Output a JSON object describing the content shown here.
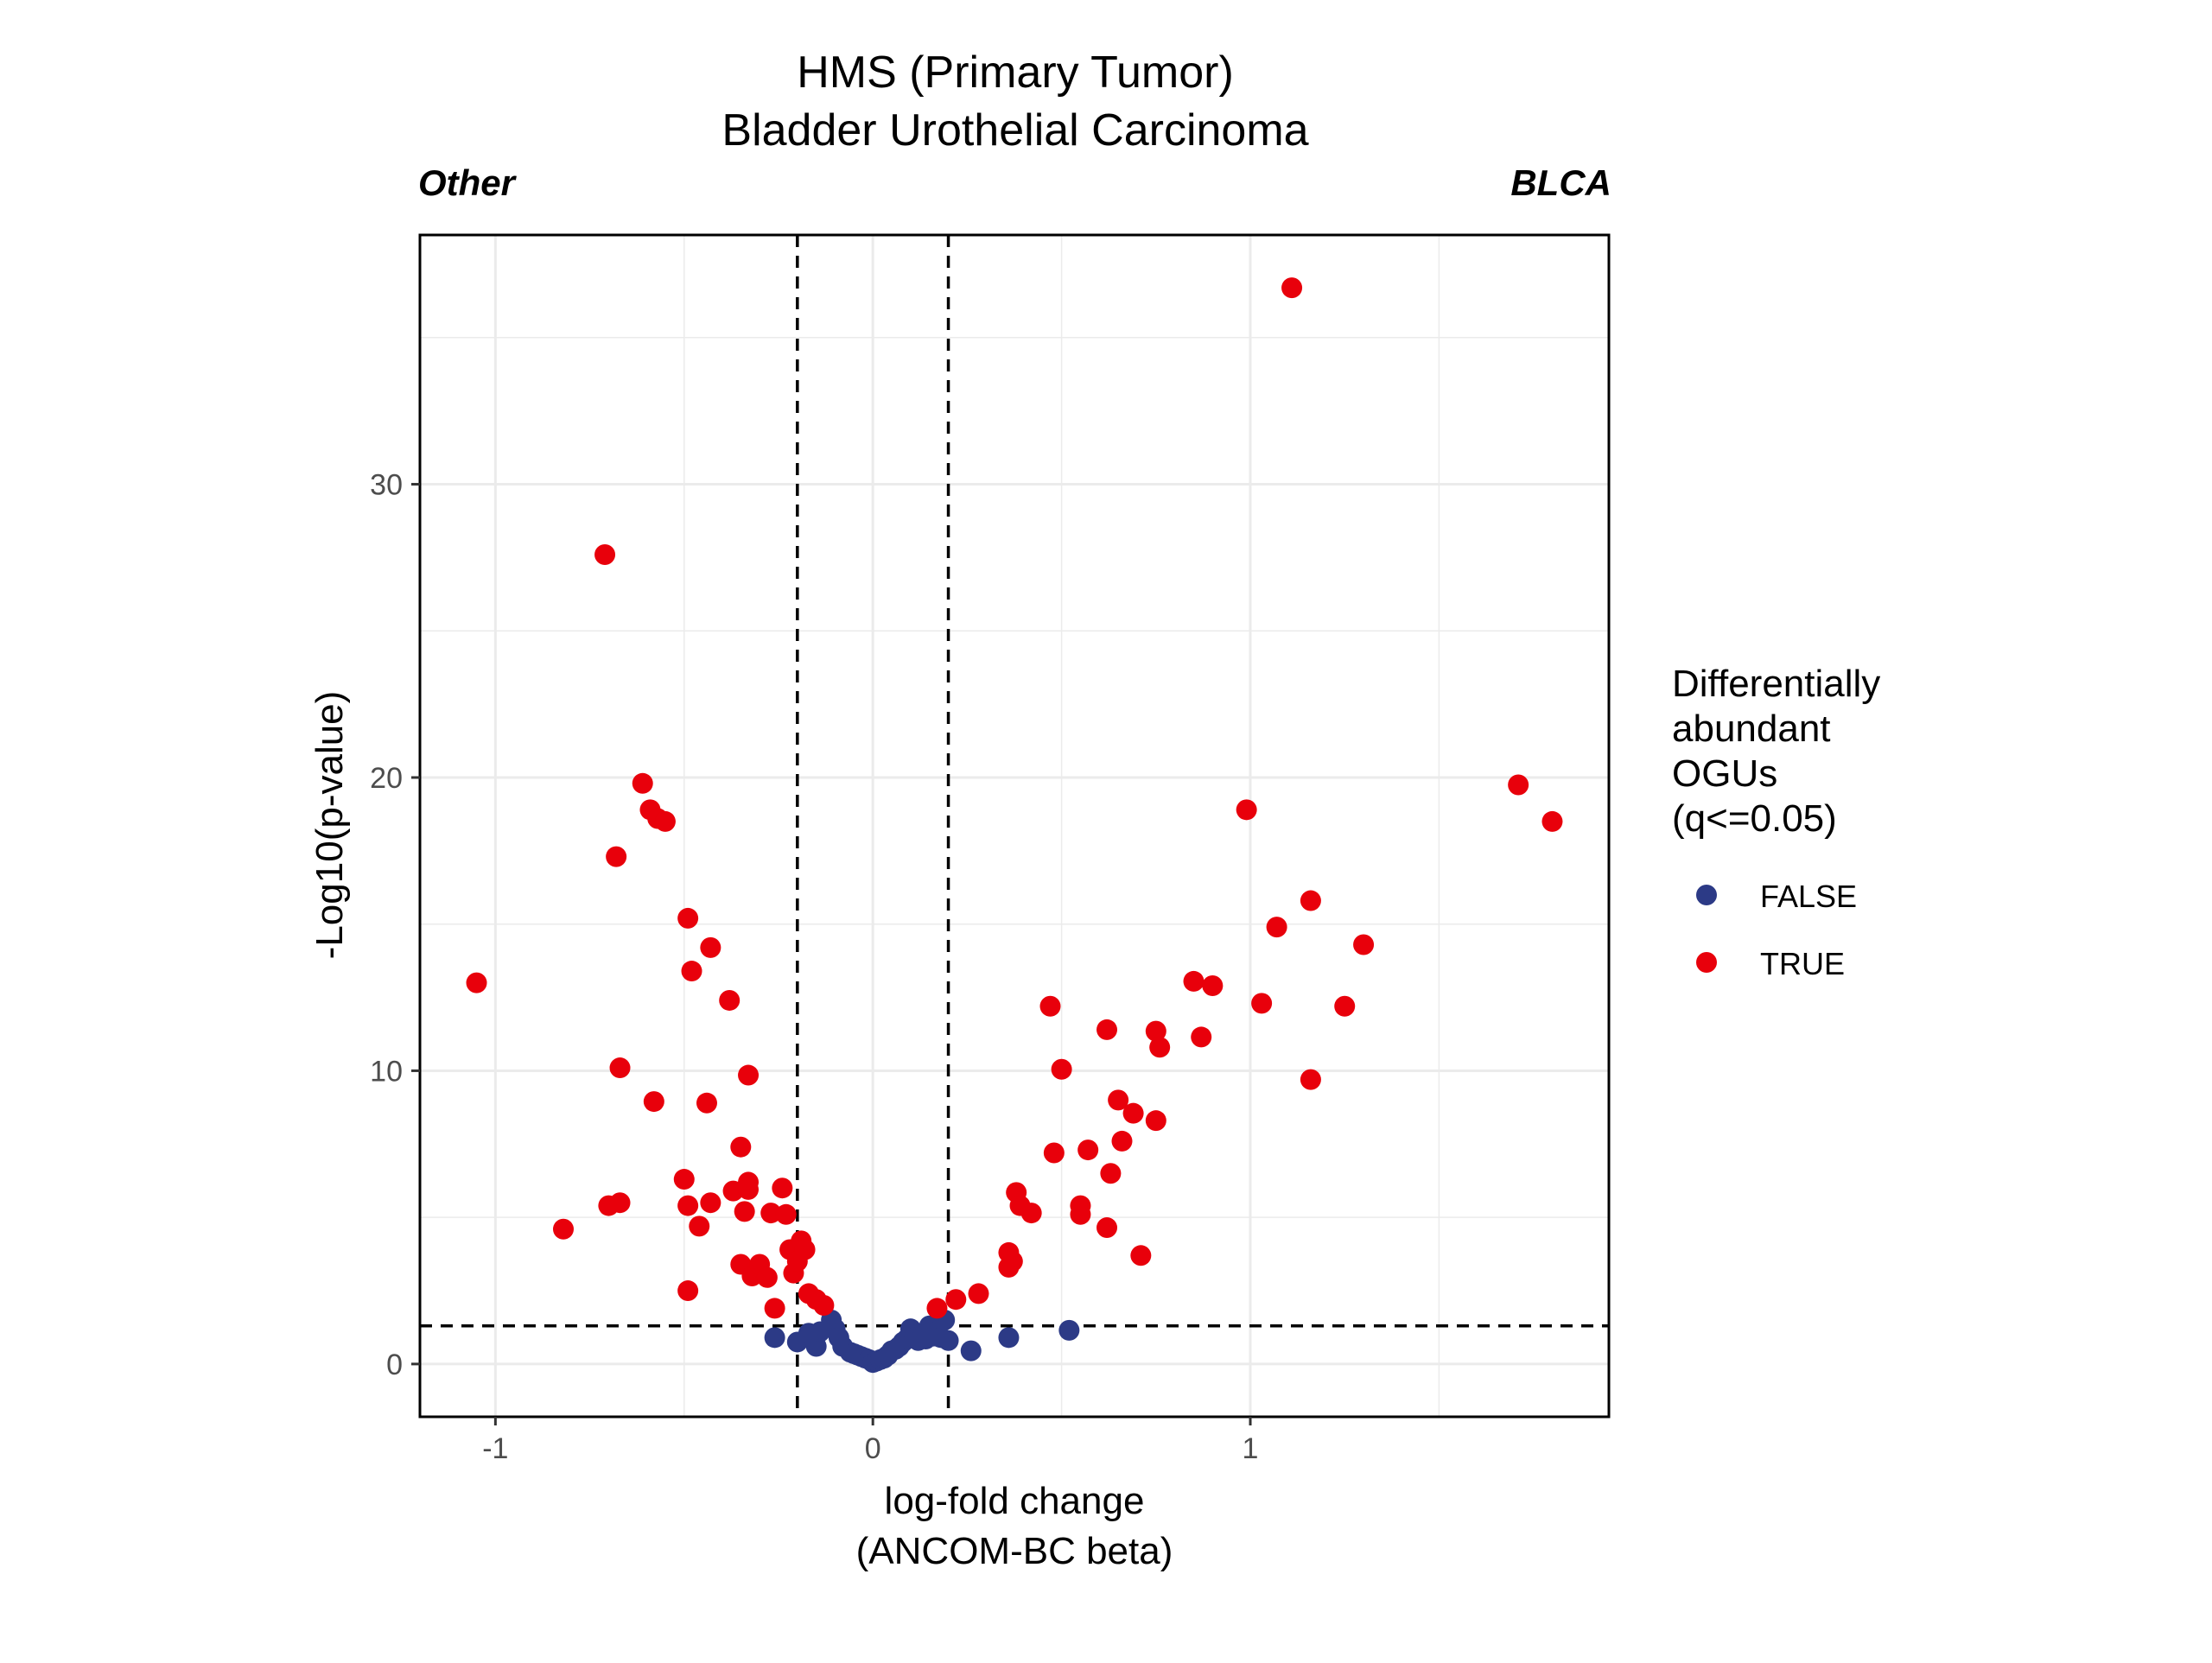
{
  "chart_data": {
    "type": "scatter",
    "title": [
      "HMS (Primary Tumor)",
      "Bladder Urothelial Carcinoma"
    ],
    "left_label": "Other",
    "right_label": "BLCA",
    "xlabel": [
      "log-fold change",
      "(ANCOM-BC beta)"
    ],
    "ylabel": "-Log10(p-value)",
    "xlim": [
      -1.2,
      1.95
    ],
    "ylim": [
      -1.8,
      38.5
    ],
    "x_ticks": [
      -1,
      0,
      1
    ],
    "x_tick_labels": [
      "-1",
      "0",
      "1"
    ],
    "y_ticks": [
      0,
      10,
      20,
      30
    ],
    "y_tick_labels": [
      "0",
      "10",
      "20",
      "30"
    ],
    "grid": true,
    "reference_lines": {
      "vertical": [
        -0.2,
        0.2
      ],
      "horizontal": [
        1.3
      ]
    },
    "legend": {
      "title": [
        "Differentially",
        "abundant",
        "OGUs",
        "(q<=0.05)"
      ],
      "placement": "right",
      "entries": [
        {
          "label": "FALSE",
          "color": "#2c3a86"
        },
        {
          "label": "TRUE",
          "color": "#e8000b"
        }
      ]
    },
    "series": [
      {
        "name": "FALSE",
        "color": "#2c3a86",
        "points": [
          [
            -0.26,
            0.9
          ],
          [
            -0.2,
            0.75
          ],
          [
            -0.17,
            1.05
          ],
          [
            -0.15,
            0.6
          ],
          [
            -0.14,
            1.1
          ],
          [
            -0.11,
            1.5
          ],
          [
            -0.1,
            1.2
          ],
          [
            -0.09,
            0.9
          ],
          [
            -0.08,
            0.6
          ],
          [
            -0.06,
            0.4
          ],
          [
            -0.05,
            0.35
          ],
          [
            -0.04,
            0.3
          ],
          [
            -0.03,
            0.25
          ],
          [
            -0.02,
            0.2
          ],
          [
            -0.01,
            0.15
          ],
          [
            0.0,
            0.05
          ],
          [
            0.01,
            0.1
          ],
          [
            0.02,
            0.15
          ],
          [
            0.03,
            0.2
          ],
          [
            0.04,
            0.3
          ],
          [
            0.05,
            0.45
          ],
          [
            0.06,
            0.5
          ],
          [
            0.07,
            0.6
          ],
          [
            0.08,
            0.75
          ],
          [
            0.09,
            0.85
          ],
          [
            0.1,
            1.2
          ],
          [
            0.11,
            0.9
          ],
          [
            0.12,
            0.8
          ],
          [
            0.13,
            1.0
          ],
          [
            0.14,
            0.85
          ],
          [
            0.15,
            1.3
          ],
          [
            0.16,
            0.95
          ],
          [
            0.17,
            1.1
          ],
          [
            0.18,
            0.9
          ],
          [
            0.19,
            1.5
          ],
          [
            0.2,
            0.8
          ],
          [
            0.26,
            0.45
          ],
          [
            0.36,
            0.9
          ],
          [
            0.52,
            1.15
          ]
        ]
      },
      {
        "name": "TRUE",
        "color": "#e8000b",
        "points": [
          [
            -1.05,
            13.0
          ],
          [
            -0.82,
            4.6
          ],
          [
            -0.71,
            27.6
          ],
          [
            -0.7,
            5.4
          ],
          [
            -0.68,
            17.3
          ],
          [
            -0.67,
            10.1
          ],
          [
            -0.67,
            5.5
          ],
          [
            -0.61,
            19.8
          ],
          [
            -0.59,
            18.9
          ],
          [
            -0.58,
            8.95
          ],
          [
            -0.57,
            18.6
          ],
          [
            -0.55,
            18.5
          ],
          [
            -0.5,
            6.3
          ],
          [
            -0.49,
            15.2
          ],
          [
            -0.49,
            5.4
          ],
          [
            -0.49,
            2.5
          ],
          [
            -0.48,
            13.4
          ],
          [
            -0.46,
            4.7
          ],
          [
            -0.44,
            8.9
          ],
          [
            -0.43,
            14.2
          ],
          [
            -0.43,
            5.5
          ],
          [
            -0.38,
            12.4
          ],
          [
            -0.37,
            5.9
          ],
          [
            -0.35,
            7.4
          ],
          [
            -0.35,
            3.4
          ],
          [
            -0.34,
            5.2
          ],
          [
            -0.33,
            6.2
          ],
          [
            -0.33,
            9.85
          ],
          [
            -0.33,
            5.95
          ],
          [
            -0.32,
            3.0
          ],
          [
            -0.3,
            3.4
          ],
          [
            -0.28,
            2.95
          ],
          [
            -0.27,
            5.15
          ],
          [
            -0.26,
            1.9
          ],
          [
            -0.24,
            6.0
          ],
          [
            -0.23,
            5.1
          ],
          [
            -0.22,
            3.9
          ],
          [
            -0.21,
            3.1
          ],
          [
            -0.2,
            3.5
          ],
          [
            -0.19,
            4.2
          ],
          [
            -0.18,
            3.9
          ],
          [
            -0.17,
            2.4
          ],
          [
            -0.15,
            2.2
          ],
          [
            -0.13,
            2.0
          ],
          [
            0.17,
            1.9
          ],
          [
            0.22,
            2.2
          ],
          [
            0.28,
            2.4
          ],
          [
            0.36,
            3.8
          ],
          [
            0.36,
            3.3
          ],
          [
            0.37,
            3.5
          ],
          [
            0.38,
            5.85
          ],
          [
            0.39,
            5.4
          ],
          [
            0.42,
            5.15
          ],
          [
            0.47,
            12.2
          ],
          [
            0.48,
            7.2
          ],
          [
            0.5,
            10.05
          ],
          [
            0.55,
            5.4
          ],
          [
            0.55,
            5.1
          ],
          [
            0.57,
            7.3
          ],
          [
            0.62,
            4.65
          ],
          [
            0.62,
            11.4
          ],
          [
            0.63,
            6.5
          ],
          [
            0.65,
            9.0
          ],
          [
            0.66,
            7.6
          ],
          [
            0.69,
            8.55
          ],
          [
            0.71,
            3.7
          ],
          [
            0.75,
            11.35
          ],
          [
            0.75,
            8.3
          ],
          [
            0.76,
            10.8
          ],
          [
            0.85,
            13.05
          ],
          [
            0.87,
            11.15
          ],
          [
            0.9,
            12.9
          ],
          [
            0.99,
            18.9
          ],
          [
            1.03,
            12.3
          ],
          [
            1.07,
            14.9
          ],
          [
            1.11,
            36.7
          ],
          [
            1.16,
            15.8
          ],
          [
            1.16,
            9.7
          ],
          [
            1.25,
            12.2
          ],
          [
            1.3,
            14.3
          ],
          [
            1.71,
            19.75
          ],
          [
            1.8,
            18.5
          ]
        ]
      }
    ]
  }
}
